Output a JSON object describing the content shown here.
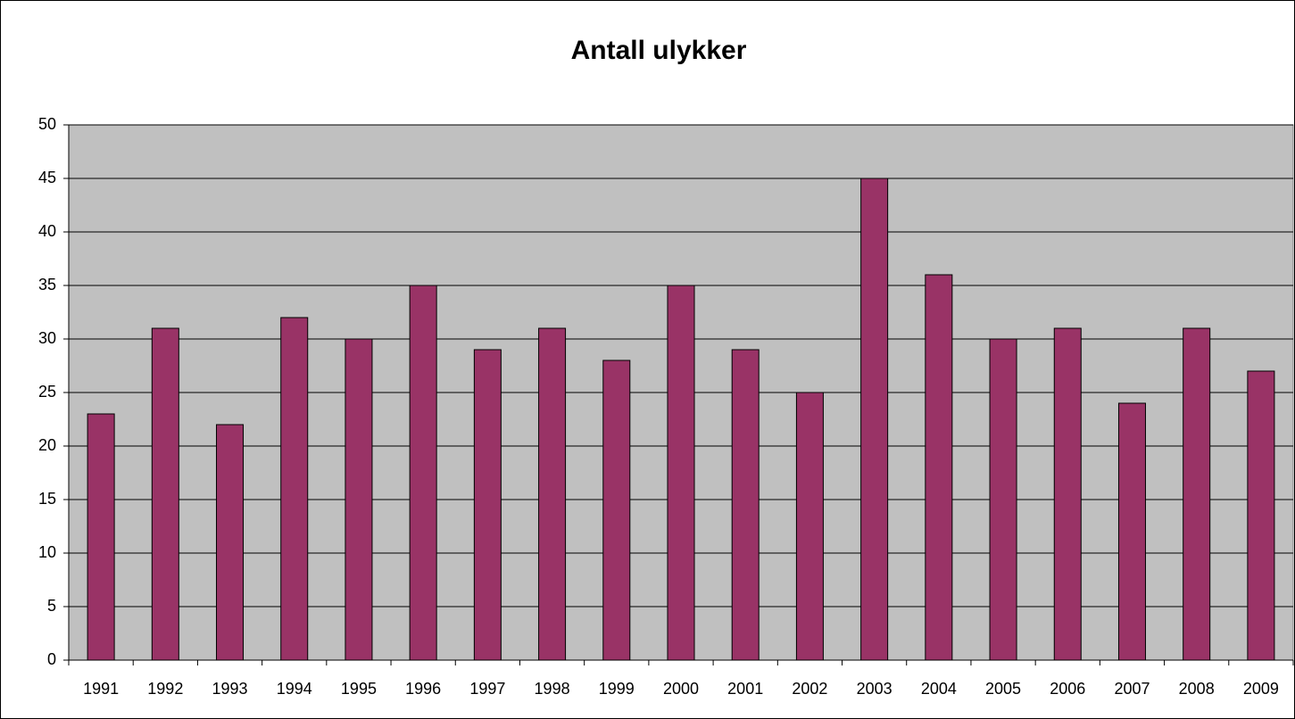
{
  "chart_data": {
    "type": "bar",
    "title": "Antall ulykker",
    "categories": [
      "1991",
      "1992",
      "1993",
      "1994",
      "1995",
      "1996",
      "1997",
      "1998",
      "1999",
      "2000",
      "2001",
      "2002",
      "2003",
      "2004",
      "2005",
      "2006",
      "2007",
      "2008",
      "2009"
    ],
    "values": [
      23,
      31,
      22,
      32,
      30,
      35,
      29,
      31,
      28,
      35,
      29,
      25,
      45,
      36,
      30,
      31,
      24,
      31,
      27
    ],
    "color": "#993366",
    "ylim": [
      0,
      50
    ],
    "yticks": [
      0,
      5,
      10,
      15,
      20,
      25,
      30,
      35,
      40,
      45,
      50
    ],
    "grid": true
  }
}
